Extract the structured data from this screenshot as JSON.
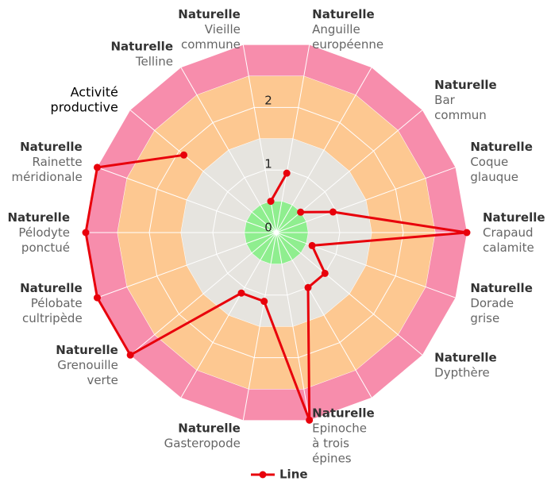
{
  "chart_data": {
    "type": "radar",
    "categories": [
      {
        "title": "Naturelle",
        "lines": [
          "Anguille",
          "européenne"
        ]
      },
      null,
      {
        "title": "Naturelle",
        "lines": [
          "Bar",
          "commun"
        ]
      },
      {
        "title": "Naturelle",
        "lines": [
          "Coque",
          "glauque"
        ]
      },
      {
        "title": "Naturelle",
        "lines": [
          "Crapaud",
          "calamite"
        ]
      },
      {
        "title": "Naturelle",
        "lines": [
          "Dorade",
          "grise"
        ]
      },
      {
        "title": "Naturelle",
        "lines": [
          "Dypthère"
        ]
      },
      null,
      {
        "title": "Naturelle",
        "lines": [
          "Epinoche",
          "à trois",
          "épines"
        ]
      },
      {
        "title": "Naturelle",
        "lines": [
          "Gasteropode"
        ]
      },
      null,
      {
        "title": "Naturelle",
        "lines": [
          "Grenouille",
          "verte"
        ]
      },
      {
        "title": "Naturelle",
        "lines": [
          "Pélobate",
          "cultripède"
        ]
      },
      {
        "title": "Naturelle",
        "lines": [
          "Pélodyte",
          "ponctué"
        ]
      },
      {
        "title": "Naturelle",
        "lines": [
          "Rainette",
          "méridionale"
        ]
      },
      {
        "lines": [
          "Activité",
          "productive"
        ]
      },
      {
        "title": "Naturelle",
        "lines": [
          "Telline"
        ]
      },
      {
        "title": "Naturelle",
        "lines": [
          "Vieille",
          "commune"
        ]
      }
    ],
    "series": [
      {
        "name": "Line",
        "color": "#e8000b",
        "values": [
          0.95,
          null,
          0.5,
          0.95,
          3,
          0.6,
          1,
          1,
          3,
          1.1,
          1.1,
          3,
          3,
          3,
          3,
          1.9,
          null,
          0.5
        ]
      }
    ],
    "rlim": [
      0,
      3
    ],
    "rticks": [
      0,
      1,
      2
    ],
    "bands": [
      {
        "from": 2.5,
        "to": 3,
        "color": "#f78dac"
      },
      {
        "from": 1.5,
        "to": 2.5,
        "color": "#fdc891"
      },
      {
        "from": 0.5,
        "to": 1.5,
        "color": "#e6e4df"
      },
      {
        "from": 0,
        "to": 0.5,
        "color": "#8fee8f"
      }
    ],
    "legend": "bottom"
  }
}
